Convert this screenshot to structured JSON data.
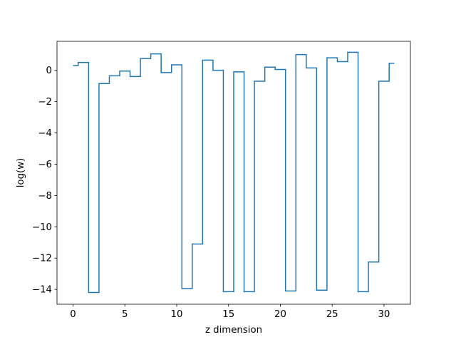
{
  "chart_data": {
    "type": "line",
    "drawstyle": "steps-mid",
    "title": "",
    "xlabel": "z dimension",
    "ylabel": "log(w)",
    "xlim": [
      -1.55,
      32.55
    ],
    "ylim": [
      -14.95,
      1.85
    ],
    "xticks": [
      0,
      5,
      10,
      15,
      20,
      25,
      30
    ],
    "yticks": [
      0,
      -2,
      -4,
      -6,
      -8,
      -10,
      -12,
      -14
    ],
    "xtick_labels": [
      "0",
      "5",
      "10",
      "15",
      "20",
      "25",
      "30"
    ],
    "ytick_labels": [
      "0",
      "−2",
      "−4",
      "−6",
      "−8",
      "−10",
      "−12",
      "−14"
    ],
    "grid": false,
    "series": [
      {
        "color": "#1f77b4",
        "x": [
          0,
          1,
          2,
          3,
          4,
          5,
          6,
          7,
          8,
          9,
          10,
          11,
          12,
          13,
          14,
          15,
          16,
          17,
          18,
          19,
          20,
          21,
          22,
          23,
          24,
          25,
          26,
          27,
          28,
          29,
          30,
          31
        ],
        "y": [
          0.3,
          0.5,
          -14.2,
          -0.85,
          -0.35,
          -0.05,
          -0.4,
          0.75,
          1.05,
          -0.15,
          0.35,
          -13.95,
          -11.1,
          0.65,
          0.0,
          -14.15,
          -0.1,
          -14.15,
          -0.7,
          0.2,
          0.05,
          -14.1,
          1.0,
          0.15,
          -14.05,
          0.8,
          0.55,
          1.15,
          -14.15,
          -12.25,
          -0.7,
          0.45
        ]
      }
    ]
  }
}
